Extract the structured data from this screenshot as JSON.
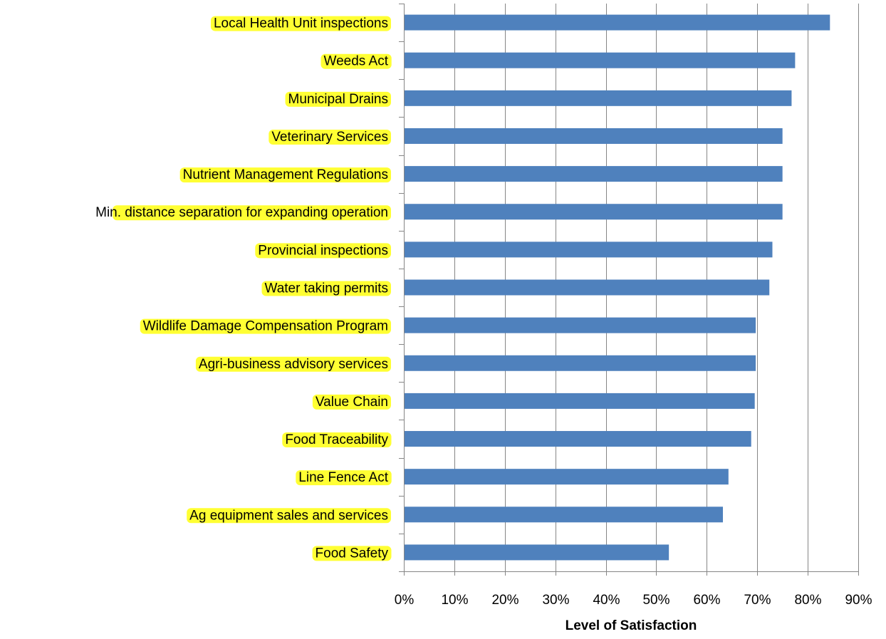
{
  "chart_data": {
    "type": "bar",
    "orientation": "horizontal",
    "categories": [
      "Local Health Unit inspections",
      "Weeds Act",
      "Municipal Drains",
      "Veterinary Services",
      "Nutrient Management Regulations",
      "Min. distance separation for expanding operation",
      "Provincial inspections",
      "Water taking permits",
      "Wildlife Damage Compensation Program",
      "Agri-business advisory services",
      "Value Chain",
      "Food Traceability",
      "Line Fence Act",
      "Ag equipment sales and services",
      "Food Safety"
    ],
    "values": [
      84.4,
      77.5,
      76.8,
      75.0,
      75.0,
      75.0,
      73.0,
      72.4,
      69.7,
      69.7,
      69.5,
      68.8,
      64.3,
      63.2,
      52.5
    ],
    "xlabel": "Level of Satisfaction",
    "ylabel": "",
    "xlim": [
      0,
      90
    ],
    "xticks": [
      "0%",
      "10%",
      "20%",
      "30%",
      "40%",
      "50%",
      "60%",
      "70%",
      "80%",
      "90%"
    ],
    "grid": "vertical",
    "legend": "none",
    "colors": {
      "bar": "#4F81BD",
      "label_highlight": "#FFFF33",
      "gridline": "#868686",
      "axis": "#868686",
      "text": "#000000"
    }
  }
}
